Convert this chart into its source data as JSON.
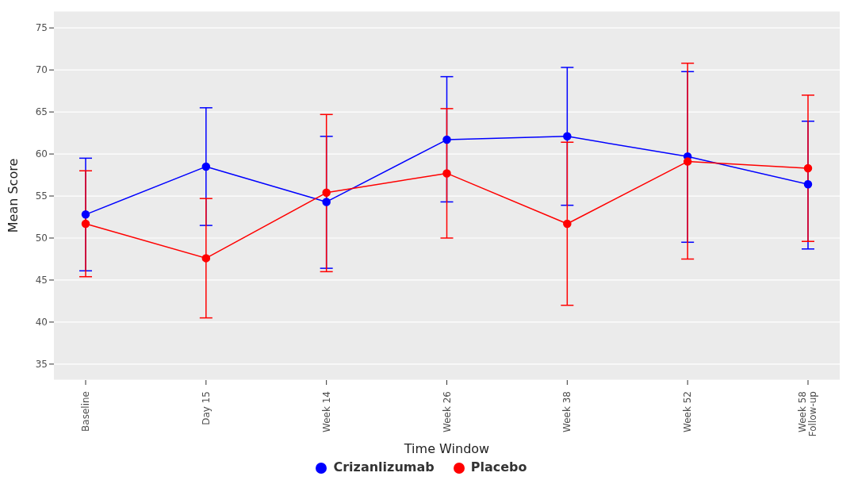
{
  "chart_data": {
    "type": "line",
    "xlabel": "Time Window",
    "ylabel": "Mean Score",
    "categories": [
      "Baseline",
      "Day 15",
      "Week 14",
      "Week 26",
      "Week 38",
      "Week 52",
      "Week 58\nFollow-up"
    ],
    "ylim": [
      33.1,
      77
    ],
    "yticks": [
      35,
      40,
      45,
      50,
      55,
      60,
      65,
      70,
      75
    ],
    "series": [
      {
        "name": "Crizanlizumab",
        "color": "#0000ff",
        "values": [
          52.8,
          58.5,
          54.3,
          61.7,
          62.1,
          59.7,
          56.4
        ],
        "errors": [
          [
            46.1,
            59.5
          ],
          [
            51.5,
            65.5
          ],
          [
            46.4,
            62.1
          ],
          [
            54.3,
            69.2
          ],
          [
            53.9,
            70.3
          ],
          [
            49.5,
            69.8
          ],
          [
            48.7,
            63.9
          ]
        ]
      },
      {
        "name": "Placebo",
        "color": "#ff0000",
        "values": [
          51.7,
          47.6,
          55.4,
          57.7,
          51.7,
          59.1,
          58.3
        ],
        "errors": [
          [
            45.4,
            58.0
          ],
          [
            40.5,
            54.7
          ],
          [
            46.0,
            64.7
          ],
          [
            50.0,
            65.4
          ],
          [
            42.0,
            61.4
          ],
          [
            47.5,
            70.8
          ],
          [
            49.6,
            67.0
          ]
        ]
      }
    ],
    "grid": "y",
    "legend": "bottom",
    "marker": "circle",
    "line_style": "solid"
  }
}
